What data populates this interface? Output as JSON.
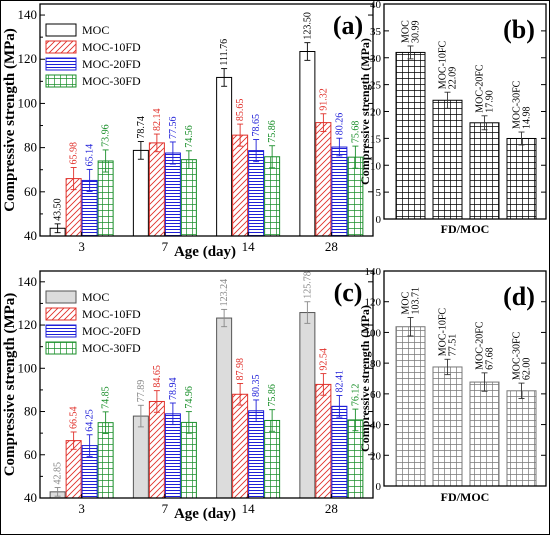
{
  "chart_data": [
    {
      "panel": "(a)",
      "type": "bar",
      "xlabel": "Age (day)",
      "ylabel": "Compressive strength (MPa)",
      "ylim": [
        40,
        145
      ],
      "yticks": [
        40,
        60,
        80,
        100,
        120,
        140
      ],
      "categories": [
        "3",
        "7",
        "14",
        "28"
      ],
      "legend_position": "top-left",
      "series": [
        {
          "name": "MOC",
          "color": "#000000",
          "pattern": "none",
          "values": [
            43.5,
            78.74,
            111.76,
            123.5
          ],
          "labels": [
            "43.50",
            "78.74",
            "111.76",
            "123.50"
          ],
          "errors": [
            2,
            4,
            4,
            4
          ]
        },
        {
          "name": "MOC-10FD",
          "color": "#e0302a",
          "pattern": "diagonal",
          "values": [
            65.98,
            82.14,
            85.65,
            91.32
          ],
          "labels": [
            "65.98",
            "82.14",
            "85.65",
            "91.32"
          ],
          "errors": [
            5,
            4,
            5,
            4
          ]
        },
        {
          "name": "MOC-20FD",
          "color": "#1f1fd8",
          "pattern": "horizontal",
          "values": [
            65.14,
            77.56,
            78.65,
            80.26
          ],
          "labels": [
            "65.14",
            "77.56",
            "78.65",
            "80.26"
          ],
          "errors": [
            5,
            5,
            5,
            4
          ]
        },
        {
          "name": "MOC-30FD",
          "color": "#1a8f2a",
          "pattern": "grid",
          "values": [
            73.96,
            74.56,
            75.86,
            75.68
          ],
          "labels": [
            "73.96",
            "74.56",
            "75.86",
            "75.68"
          ],
          "errors": [
            5,
            4,
            5,
            5
          ]
        }
      ]
    },
    {
      "panel": "(b)",
      "type": "bar",
      "xlabel": "FD/MOC",
      "ylabel": "Compressive strength (MPa)",
      "ylim": [
        0,
        40
      ],
      "yticks": [
        0,
        5,
        10,
        15,
        20,
        25,
        30,
        35,
        40
      ],
      "categories": [
        "MOC",
        "MOC-10FC",
        "MOC-20FC",
        "MOC-30FC"
      ],
      "series": [
        {
          "name": "",
          "color": "#000000",
          "pattern": "grid",
          "values": [
            30.99,
            22.09,
            17.9,
            14.98
          ],
          "labels": [
            "30.99",
            "22.09",
            "17.90",
            "14.98"
          ],
          "errors": [
            1.2,
            1.5,
            1.3,
            1.2
          ]
        }
      ]
    },
    {
      "panel": "(c)",
      "type": "bar",
      "xlabel": "Age (day)",
      "ylabel": "Compressive strength (MPa)",
      "ylim": [
        40,
        145
      ],
      "yticks": [
        40,
        60,
        80,
        100,
        120,
        140
      ],
      "categories": [
        "3",
        "7",
        "14",
        "28"
      ],
      "legend_position": "top-left",
      "series": [
        {
          "name": "MOC",
          "color": "#888888",
          "pattern": "solid",
          "values": [
            42.85,
            77.89,
            123.24,
            125.78
          ],
          "labels": [
            "42.85",
            "77.89",
            "123.24",
            "125.78"
          ],
          "errors": [
            2,
            5,
            4,
            5
          ]
        },
        {
          "name": "MOC-10FD",
          "color": "#e0302a",
          "pattern": "diagonal",
          "values": [
            66.54,
            84.65,
            87.98,
            92.54
          ],
          "labels": [
            "66.54",
            "84.65",
            "87.98",
            "92.54"
          ],
          "errors": [
            4,
            5,
            5,
            5
          ]
        },
        {
          "name": "MOC-20FD",
          "color": "#1f1fd8",
          "pattern": "horizontal",
          "values": [
            64.25,
            78.94,
            80.35,
            82.41
          ],
          "labels": [
            "64.25",
            "78.94",
            "80.35",
            "82.41"
          ],
          "errors": [
            5,
            5,
            5,
            5
          ]
        },
        {
          "name": "MOC-30FD",
          "color": "#1a8f2a",
          "pattern": "grid",
          "values": [
            74.85,
            74.96,
            75.86,
            76.12
          ],
          "labels": [
            "74.85",
            "74.96",
            "75.86",
            "76.12"
          ],
          "errors": [
            5,
            5,
            5,
            5
          ]
        }
      ]
    },
    {
      "panel": "(d)",
      "type": "bar",
      "xlabel": "FD/MOC",
      "ylabel": "Compressive strength (MPa)",
      "ylim": [
        0,
        140
      ],
      "yticks": [
        0,
        20,
        40,
        60,
        80,
        100,
        120,
        140
      ],
      "categories": [
        "MOC",
        "MOC-10FC",
        "MOC-20FC",
        "MOC-30FC"
      ],
      "series": [
        {
          "name": "",
          "color": "#777777",
          "pattern": "grid",
          "values": [
            103.71,
            77.51,
            67.68,
            62.0
          ],
          "labels": [
            "103.71",
            "77.51",
            "67.68",
            "62.00"
          ],
          "errors": [
            6,
            5,
            6,
            5
          ]
        }
      ]
    }
  ]
}
